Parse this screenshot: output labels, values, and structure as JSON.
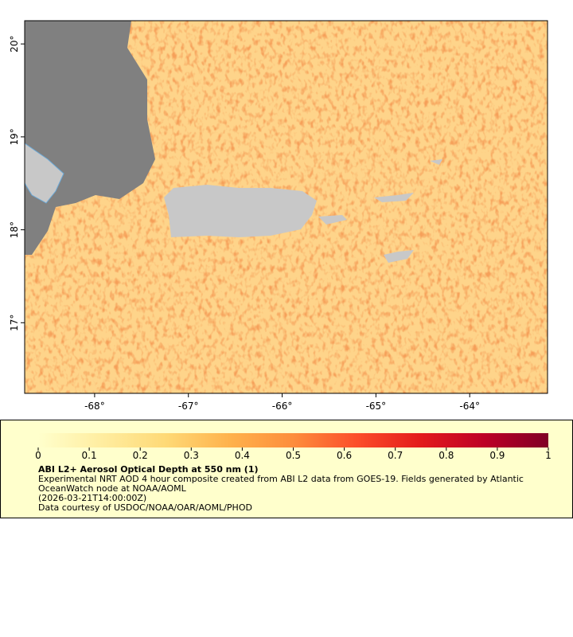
{
  "map": {
    "xlim": [
      -68.746,
      -63.17
    ],
    "ylim": [
      16.24,
      20.25
    ],
    "xticks": [
      {
        "value": -68,
        "label": "-68°"
      },
      {
        "value": -67,
        "label": "-67°"
      },
      {
        "value": -66,
        "label": "-66°"
      },
      {
        "value": -65,
        "label": "-65°"
      },
      {
        "value": -64,
        "label": "-64°"
      }
    ],
    "yticks": [
      {
        "value": 17,
        "label": "17°"
      },
      {
        "value": 18,
        "label": "18°"
      },
      {
        "value": 19,
        "label": "19°"
      },
      {
        "value": 20,
        "label": "20°"
      }
    ]
  },
  "colorbar": {
    "lim": [
      0,
      1
    ],
    "ticks": [
      0,
      0.1,
      0.2,
      0.3,
      0.4,
      0.5,
      0.6,
      0.7,
      0.8,
      0.9,
      1
    ],
    "colors": [
      "#ffffcc",
      "#ffeda0",
      "#fed976",
      "#feb24c",
      "#fd8d3c",
      "#fc4e2a",
      "#e31a1c",
      "#bd0026",
      "#800026"
    ]
  },
  "legend": {
    "title": "ABI L2+ Aerosol Optical Depth at 550 nm (1)",
    "description": "Experimental NRT AOD 4 hour composite created from ABI L2 data from GOES-19. Fields generated by Atlantic OceanWatch node at NOAA/AOML",
    "date": "(2026-03-21T14:00:00Z)",
    "credit": "Data courtesy of USDOC/NOAA/OAR/AOML/PHOD"
  }
}
